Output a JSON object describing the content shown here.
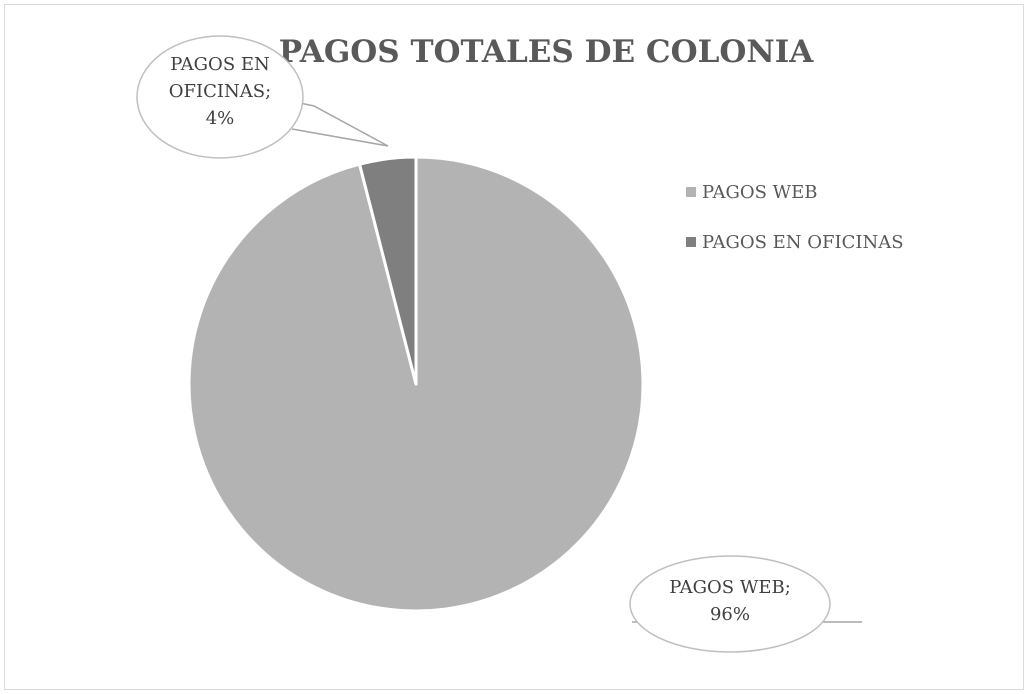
{
  "chart_data": {
    "type": "pie",
    "title": "PAGOS TOTALES DE COLONIA",
    "categories": [
      "PAGOS WEB",
      "PAGOS EN OFICINAS"
    ],
    "values": [
      96,
      4
    ],
    "unit": "%",
    "data_labels": [
      {
        "lines": [
          "PAGOS WEB;",
          "96%"
        ]
      },
      {
        "lines": [
          "PAGOS EN",
          "OFICINAS;",
          "4%"
        ]
      }
    ],
    "legend": {
      "placement": "right",
      "entries": [
        "PAGOS WEB",
        "PAGOS EN OFICINAS"
      ]
    },
    "colors": {
      "slices": [
        "#b3b3b3",
        "#7f7f7f"
      ],
      "slice_border": "#ffffff",
      "callout_border": "#bfbfbf",
      "leader_line": "#a6a6a6"
    }
  }
}
